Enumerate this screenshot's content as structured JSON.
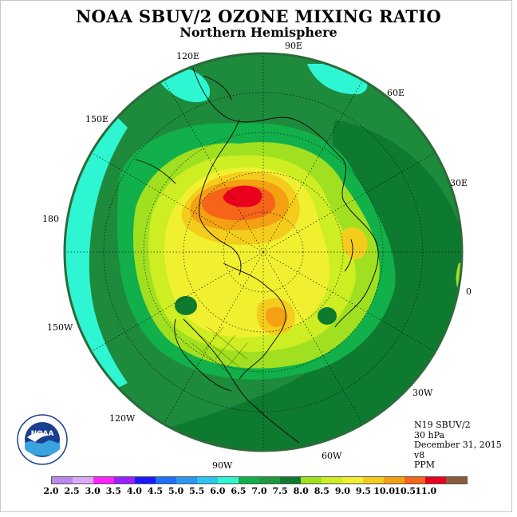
{
  "title": "NOAA SBUV/2 OZONE MIXING RATIO",
  "subtitle": "Northern Hemisphere",
  "map": {
    "projection": "north-polar-stereographic",
    "longitude_labels": {
      "lon_90e": "90E",
      "lon_60e": "60E",
      "lon_30e": "30E",
      "lon_0": "0",
      "lon_30w": "30W",
      "lon_60w": "60W",
      "lon_90w": "90W",
      "lon_120w": "120W",
      "lon_150w": "150W",
      "lon_180": "180",
      "lon_150e": "150E",
      "lon_120e": "120E"
    },
    "colors": {
      "background_field": "#1e8a3c",
      "ring": "#2bf0c8",
      "max": "#e8001c"
    }
  },
  "info": {
    "satellite": "N19 SBUV/2",
    "level": "30 hPa",
    "date": "December 31, 2015",
    "version": "v8",
    "units": "PPM"
  },
  "colorbar": {
    "colors": [
      "#bb88ee",
      "#dda9f5",
      "#ff20ff",
      "#9b20ff",
      "#1919ff",
      "#1f6eff",
      "#2a98f0",
      "#2ac6f0",
      "#2ef5d2",
      "#11b04a",
      "#1e9a3e",
      "#0e7a30",
      "#a0e020",
      "#ccee22",
      "#f0f030",
      "#f4cc1c",
      "#f3a012",
      "#f6641a",
      "#e8001c",
      "#8b5a3c"
    ],
    "ticks": [
      "2.0",
      "2.5",
      "3.0",
      "3.5",
      "4.0",
      "4.5",
      "5.0",
      "5.5",
      "6.0",
      "6.5",
      "7.0",
      "7.5",
      "8.0",
      "8.5",
      "9.0",
      "9.5",
      "10.0",
      "10.5",
      "11.0"
    ]
  },
  "logo": {
    "text": "NOAA"
  }
}
